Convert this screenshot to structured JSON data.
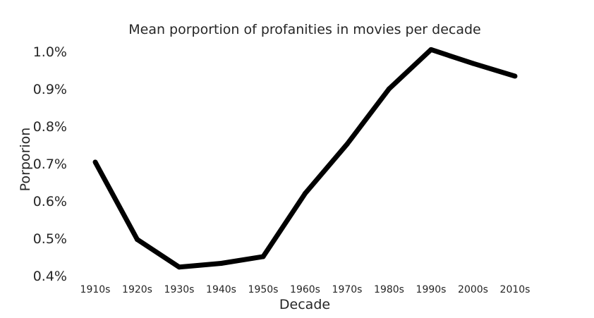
{
  "chart_data": {
    "type": "line",
    "title": "Mean porportion of profanities in movies per decade",
    "xlabel": "Decade",
    "ylabel": "Porporion",
    "categories": [
      "1910s",
      "1920s",
      "1930s",
      "1940s",
      "1950s",
      "1960s",
      "1970s",
      "1980s",
      "1990s",
      "2000s",
      "2010s"
    ],
    "values": [
      0.704,
      0.497,
      0.423,
      0.433,
      0.451,
      0.62,
      0.752,
      0.9,
      1.005,
      0.968,
      0.934
    ],
    "y_unit_suffix": "%",
    "ylim": [
      0.4,
      1.0
    ],
    "yticks": [
      0.4,
      0.5,
      0.6,
      0.7,
      0.8,
      0.9,
      1.0
    ],
    "ytick_labels": [
      "0.4%",
      "0.5%",
      "0.6%",
      "0.7%",
      "0.8%",
      "0.9%",
      "1.0%"
    ],
    "grid": false,
    "line_color": "#000000"
  }
}
